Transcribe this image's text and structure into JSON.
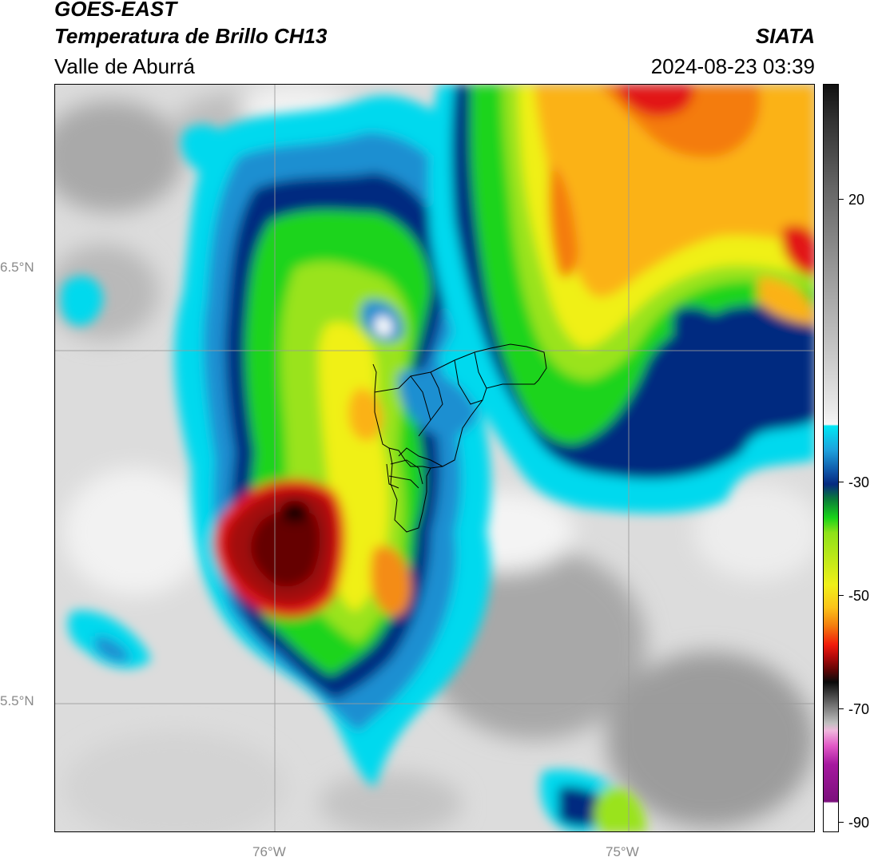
{
  "header": {
    "satellite": "GOES-EAST",
    "product": "Temperatura de Brillo CH13",
    "region": "Valle de Aburrá",
    "organization": "SIATA",
    "timestamp": "2024-08-23 03:39"
  },
  "map": {
    "latitude_labels": [
      "6.5°N",
      "5.5°N"
    ],
    "longitude_labels": [
      "76°W",
      "75°W"
    ],
    "gridlines": true,
    "overlay": "Valle de Aburrá municipality boundaries"
  },
  "colorbar": {
    "tick_labels": [
      "20",
      "-30",
      "-50",
      "-70",
      "-90"
    ],
    "units": "",
    "palette_description": "black/grey for warm, white, then cyan-blue-green-yellow-orange-red-black, then grey-pink-purple for coldest"
  },
  "colors": {
    "frame": "#000000",
    "grid": "#9a9a9a",
    "axis_label": "#8a8a8a"
  }
}
